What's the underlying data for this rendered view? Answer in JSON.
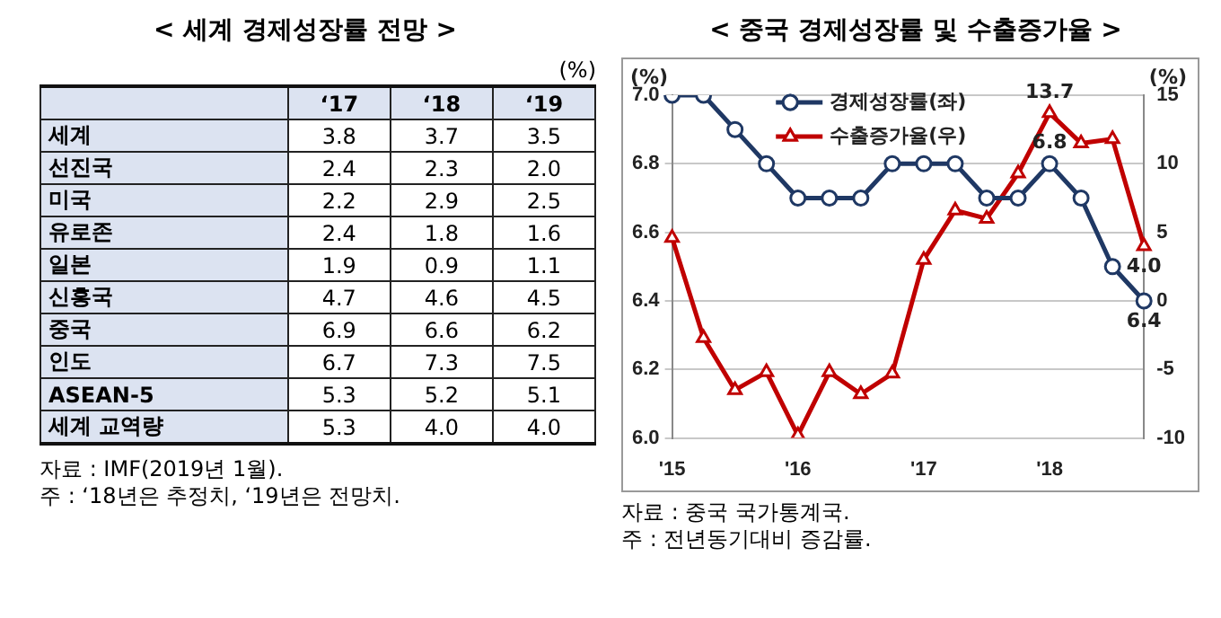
{
  "chart_data": [
    {
      "type": "heatmap",
      "title": "< 세계 경제성장률 전망 >",
      "categories": [
        "‘17",
        "‘18",
        "‘19"
      ],
      "y_categories": [
        "세계",
        "선진국",
        "미국",
        "유로존",
        "일본",
        "신흥국",
        "중국",
        "인도",
        "ASEAN-5",
        "세계 교역량"
      ],
      "cells": [
        [
          3.8,
          3.7,
          3.5
        ],
        [
          2.4,
          2.3,
          2.0
        ],
        [
          2.2,
          2.9,
          2.5
        ],
        [
          2.4,
          1.8,
          1.6
        ],
        [
          1.9,
          0.9,
          1.1
        ],
        [
          4.7,
          4.6,
          4.5
        ],
        [
          6.9,
          6.6,
          6.2
        ],
        [
          6.7,
          7.3,
          7.5
        ],
        [
          5.3,
          5.2,
          5.1
        ],
        [
          5.3,
          4.0,
          4.0
        ]
      ],
      "cell_labels": [
        [
          "3.8",
          "3.7",
          "3.5"
        ],
        [
          "2.4",
          "2.3",
          "2.0"
        ],
        [
          "2.2",
          "2.9",
          "2.5"
        ],
        [
          "2.4",
          "1.8",
          "1.6"
        ],
        [
          "1.9",
          "0.9",
          "1.1"
        ],
        [
          "4.7",
          "4.6",
          "4.5"
        ],
        [
          "6.9",
          "6.6",
          "6.2"
        ],
        [
          "6.7",
          "7.3",
          "7.5"
        ],
        [
          "5.3",
          "5.2",
          "5.1"
        ],
        [
          "5.3",
          "4.0",
          "4.0"
        ]
      ],
      "data_labels": true,
      "annotations": [
        "(%)",
        "자료 : IMF(2019년 1월).",
        "주 : ‘18년은 추정치, ‘19년은 전망치."
      ]
    },
    {
      "type": "line",
      "title": "< 중국 경제성장률 및 수출증가율 >",
      "categories": [
        "'15",
        null,
        null,
        null,
        "'16",
        null,
        null,
        null,
        "'17",
        null,
        null,
        null,
        "'18",
        null,
        null,
        null
      ],
      "series": [
        {
          "name": "경제성장률(좌)",
          "color": "#1f3864",
          "marker": "circle",
          "values": [
            7.0,
            7.0,
            6.9,
            6.8,
            6.7,
            6.7,
            6.7,
            6.8,
            6.8,
            6.8,
            6.7,
            6.7,
            6.8,
            6.7,
            6.5,
            6.4
          ],
          "value_labels": [
            null,
            null,
            null,
            null,
            null,
            null,
            null,
            null,
            null,
            null,
            null,
            null,
            "6.8",
            null,
            null,
            "6.4"
          ]
        },
        {
          "name": "수출증가율(우)",
          "color": "#c00000",
          "marker": "triangle",
          "axis": "y2",
          "values": [
            4.6,
            -2.7,
            -6.5,
            -5.2,
            -9.8,
            -5.2,
            -6.8,
            -5.3,
            3.0,
            6.6,
            6.0,
            9.3,
            13.7,
            11.5,
            11.8,
            4.0
          ],
          "value_labels": [
            null,
            null,
            null,
            null,
            null,
            null,
            null,
            null,
            null,
            null,
            null,
            null,
            "13.7",
            null,
            null,
            "4.0"
          ]
        }
      ],
      "ylabel": "(%)",
      "y2label": "(%)",
      "ylim": [
        6.0,
        7.0
      ],
      "yticks": [
        {
          "value": 6.0,
          "label": "6.0"
        },
        {
          "value": 6.2,
          "label": "6.2"
        },
        {
          "value": 6.4,
          "label": "6.4"
        },
        {
          "value": 6.6,
          "label": "6.6"
        },
        {
          "value": 6.8,
          "label": "6.8"
        },
        {
          "value": 7.0,
          "label": "7.0"
        }
      ],
      "y2lim": [
        -10,
        15
      ],
      "y2ticks": [
        -10,
        -5,
        0,
        5,
        10,
        15
      ],
      "grid": "y",
      "legend": "top left",
      "line_style": "solid",
      "annotations": [
        "자료 : 중국 국가통계국.",
        "주 : 전년동기대비 증감률."
      ]
    }
  ]
}
